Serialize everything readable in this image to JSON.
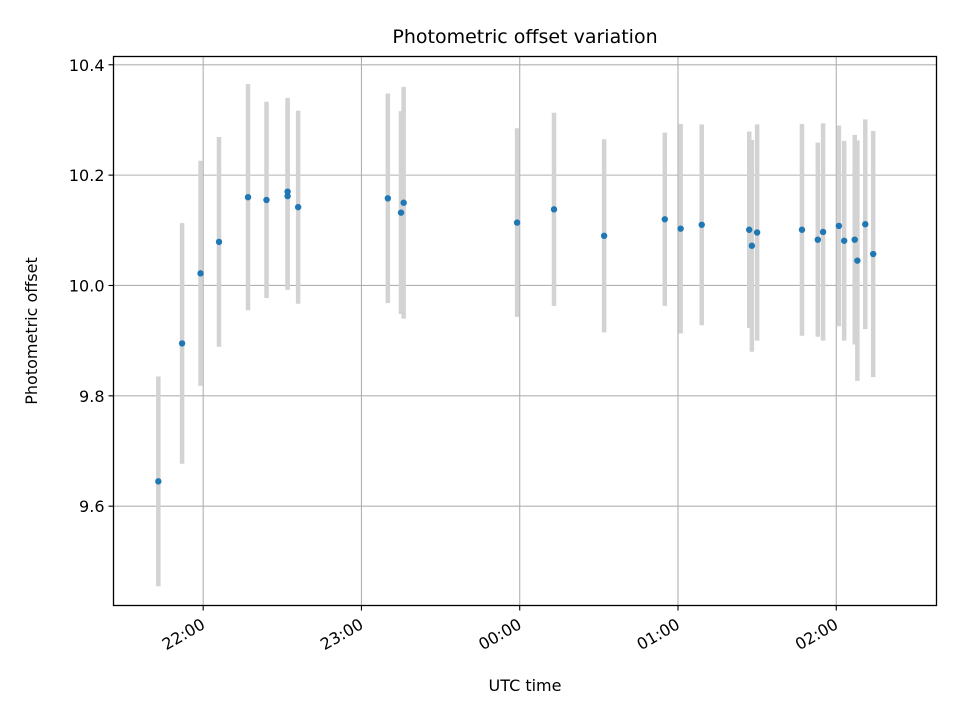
{
  "chart_data": {
    "type": "scatter",
    "title": "Photometric offset variation",
    "xlabel": "UTC time",
    "ylabel": "Photometric offset",
    "x_unit": "UTC time (HH:MM)",
    "xlim": [
      "21:26",
      "02:38"
    ],
    "ylim": [
      9.42,
      10.415
    ],
    "x_ticks": [
      "22:00",
      "23:00",
      "00:00",
      "01:00",
      "02:00"
    ],
    "y_ticks": [
      "9.6",
      "9.8",
      "10.0",
      "10.2",
      "10.4"
    ],
    "grid": true,
    "marker_color": "#1f77b4",
    "errorbar_color": "#d3d3d3",
    "points": [
      {
        "x": "21:43",
        "y": 9.645,
        "err": 0.19
      },
      {
        "x": "21:52",
        "y": 9.895,
        "err": 0.218
      },
      {
        "x": "21:59",
        "y": 10.022,
        "err": 0.204
      },
      {
        "x": "22:06",
        "y": 10.079,
        "err": 0.19
      },
      {
        "x": "22:17",
        "y": 10.16,
        "err": 0.205
      },
      {
        "x": "22:24",
        "y": 10.155,
        "err": 0.178
      },
      {
        "x": "22:32",
        "y": 10.17,
        "err": 0.17
      },
      {
        "x": "22:32",
        "y": 10.162,
        "err": 0.17
      },
      {
        "x": "22:36",
        "y": 10.142,
        "err": 0.175
      },
      {
        "x": "23:10",
        "y": 10.158,
        "err": 0.19
      },
      {
        "x": "23:15",
        "y": 10.132,
        "err": 0.184
      },
      {
        "x": "23:16",
        "y": 10.15,
        "err": 0.21
      },
      {
        "x": "23:59",
        "y": 10.114,
        "err": 0.171
      },
      {
        "x": "00:13",
        "y": 10.138,
        "err": 0.175
      },
      {
        "x": "00:32",
        "y": 10.09,
        "err": 0.175
      },
      {
        "x": "00:55",
        "y": 10.12,
        "err": 0.157
      },
      {
        "x": "01:01",
        "y": 10.103,
        "err": 0.19
      },
      {
        "x": "01:09",
        "y": 10.11,
        "err": 0.182
      },
      {
        "x": "01:27",
        "y": 10.101,
        "err": 0.178
      },
      {
        "x": "01:28",
        "y": 10.072,
        "err": 0.192
      },
      {
        "x": "01:30",
        "y": 10.096,
        "err": 0.196
      },
      {
        "x": "01:47",
        "y": 10.101,
        "err": 0.192
      },
      {
        "x": "01:53",
        "y": 10.083,
        "err": 0.176
      },
      {
        "x": "01:55",
        "y": 10.097,
        "err": 0.197
      },
      {
        "x": "02:01",
        "y": 10.108,
        "err": 0.182
      },
      {
        "x": "02:03",
        "y": 10.081,
        "err": 0.181
      },
      {
        "x": "02:07",
        "y": 10.083,
        "err": 0.19
      },
      {
        "x": "02:08",
        "y": 10.045,
        "err": 0.218
      },
      {
        "x": "02:11",
        "y": 10.111,
        "err": 0.19
      },
      {
        "x": "02:14",
        "y": 10.057,
        "err": 0.223
      }
    ]
  }
}
